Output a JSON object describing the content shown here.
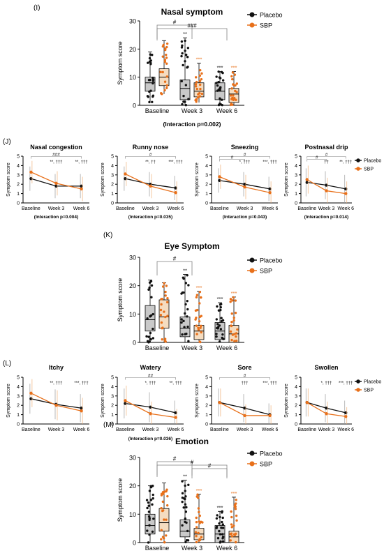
{
  "colors": {
    "placebo": "#111111",
    "sbp": "#e8701a",
    "box_placebo": "#c9c9c9",
    "box_sbp": "#f5dcc0",
    "bracket": "#7f7f7f",
    "err_sbp": "#f0b27a",
    "err_placebo": "#9a9a9a"
  },
  "panel_labels": [
    "(I)",
    "(J)",
    "(K)",
    "(L)",
    "(M)"
  ],
  "chart_data": [
    {
      "id": "I",
      "type": "box",
      "title": "Nasal symptom",
      "ylabel": "Symptom score",
      "ylim": [
        0,
        30
      ],
      "yticks": [
        0,
        10,
        20,
        30
      ],
      "categories": [
        "Baseline",
        "Week 3",
        "Week 6"
      ],
      "legend": [
        "Placebo",
        "SBP"
      ],
      "series": [
        {
          "name": "Placebo",
          "box": [
            [
              5,
              8,
              10,
              1,
              19
            ],
            [
              2,
              6,
              9,
              0,
              24
            ],
            [
              2,
              5,
              8,
              0,
              12
            ]
          ]
        },
        {
          "name": "SBP",
          "box": [
            [
              7,
              10,
              13,
              4,
              23
            ],
            [
              3,
              5,
              8,
              1,
              15
            ],
            [
              1,
              4,
              6,
              0,
              12
            ]
          ]
        }
      ],
      "stars": [
        [
          "",
          "**",
          "***"
        ],
        [
          "",
          "***",
          "***"
        ]
      ],
      "brackets": [
        "#",
        "###"
      ],
      "note": "(Interaction p=0.002)"
    },
    {
      "id": "J1",
      "type": "line",
      "title": "Nasal congestion",
      "ylabel": "Symptom score",
      "ylim": [
        0,
        5
      ],
      "yticks": [
        0,
        1,
        2,
        3,
        4,
        5
      ],
      "categories": [
        "Baseline",
        "Week 3",
        "Week 6"
      ],
      "series": [
        {
          "name": "Placebo",
          "values": [
            2.6,
            1.8,
            1.8
          ],
          "err": [
            1.3,
            1.3,
            1.3
          ]
        },
        {
          "name": "SBP",
          "values": [
            3.3,
            2.1,
            1.5
          ],
          "err": [
            1.2,
            1.3,
            1.3
          ]
        }
      ],
      "annotations": [
        "",
        "**, †††",
        "**, †††"
      ],
      "brackets": [
        "###"
      ],
      "note": "(Interaction p=0.004)"
    },
    {
      "id": "J2",
      "type": "line",
      "title": "Runny nose",
      "ylabel": "Symptom score",
      "ylim": [
        0,
        5
      ],
      "yticks": [
        0,
        1,
        2,
        3,
        4,
        5
      ],
      "categories": [
        "Baseline",
        "Week 3",
        "Week 6"
      ],
      "series": [
        {
          "name": "Placebo",
          "values": [
            2.6,
            2.0,
            1.6
          ],
          "err": [
            1.3,
            1.3,
            1.3
          ]
        },
        {
          "name": "SBP",
          "values": [
            3.1,
            1.8,
            1.1
          ],
          "err": [
            1.3,
            1.3,
            1.2
          ]
        }
      ],
      "annotations": [
        "",
        "**, ††",
        "***, †††"
      ],
      "brackets": [
        "#"
      ],
      "note": "(Interaction p=0.035)"
    },
    {
      "id": "J3",
      "type": "line",
      "title": "Sneezing",
      "ylabel": "Symptom score",
      "ylim": [
        0,
        5
      ],
      "yticks": [
        0,
        1,
        2,
        3,
        4,
        5
      ],
      "categories": [
        "Baseline",
        "Week 3",
        "Week 6"
      ],
      "series": [
        {
          "name": "Placebo",
          "values": [
            2.4,
            2.0,
            1.5
          ],
          "err": [
            1.3,
            1.3,
            1.3
          ]
        },
        {
          "name": "SBP",
          "values": [
            2.8,
            1.7,
            1.1
          ],
          "err": [
            1.3,
            1.3,
            1.2
          ]
        }
      ],
      "annotations": [
        "",
        "*, †††",
        "***, †††"
      ],
      "brackets": [
        "#",
        "#"
      ],
      "note": "(Interaction p=0.043)"
    },
    {
      "id": "J4",
      "type": "line",
      "title": "Postnasal drip",
      "ylabel": "Symptom score",
      "ylim": [
        0,
        5
      ],
      "yticks": [
        0,
        1,
        2,
        3,
        4,
        5
      ],
      "categories": [
        "Baseline",
        "Week 3",
        "Week 6"
      ],
      "legend": [
        "Placebo",
        "SBP"
      ],
      "series": [
        {
          "name": "Placebo",
          "values": [
            2.2,
            1.9,
            1.5
          ],
          "err": [
            1.5,
            1.5,
            1.5
          ]
        },
        {
          "name": "SBP",
          "values": [
            2.5,
            1.3,
            1.0
          ],
          "err": [
            1.5,
            1.4,
            1.3
          ]
        }
      ],
      "annotations": [
        "",
        "††",
        "**, †††"
      ],
      "brackets": [
        "#",
        "#"
      ],
      "note": "(Interaction p=0.014)"
    },
    {
      "id": "K",
      "type": "box",
      "title": "Eye Symptom",
      "ylabel": "Symptom score",
      "ylim": [
        0,
        30
      ],
      "yticks": [
        0,
        10,
        20,
        30
      ],
      "categories": [
        "Baseline",
        "Week 3",
        "Week 6"
      ],
      "legend": [
        "Placebo",
        "SBP"
      ],
      "series": [
        {
          "name": "Placebo",
          "box": [
            [
              4,
              8,
              13,
              0,
              22
            ],
            [
              2,
              5,
              9,
              0,
              24
            ],
            [
              1,
              4,
              7,
              0,
              14
            ]
          ]
        },
        {
          "name": "SBP",
          "box": [
            [
              5,
              9,
              15,
              0,
              21
            ],
            [
              1,
              4,
              6,
              0,
              18
            ],
            [
              0,
              3,
              6,
              0,
              16
            ]
          ]
        }
      ],
      "stars": [
        [
          "",
          "**",
          "***"
        ],
        [
          "",
          "***",
          "***"
        ]
      ],
      "brackets": [
        "#"
      ]
    },
    {
      "id": "L1",
      "type": "line",
      "title": "Itchy",
      "ylabel": "Symptom score",
      "ylim": [
        0,
        5
      ],
      "yticks": [
        0,
        1,
        2,
        3,
        4,
        5
      ],
      "categories": [
        "Baseline",
        "Week 3",
        "Week 6"
      ],
      "series": [
        {
          "name": "Placebo",
          "values": [
            2.7,
            2.1,
            1.7
          ],
          "err": [
            1.6,
            1.6,
            1.5
          ]
        },
        {
          "name": "SBP",
          "values": [
            3.3,
            2.0,
            1.4
          ],
          "err": [
            1.5,
            1.6,
            1.4
          ]
        }
      ],
      "annotations": [
        "",
        "**, †††",
        "***, †††"
      ],
      "brackets": []
    },
    {
      "id": "L2",
      "type": "line",
      "title": "Watery",
      "ylabel": "Symptom score",
      "ylim": [
        0,
        5
      ],
      "yticks": [
        0,
        1,
        2,
        3,
        4,
        5
      ],
      "categories": [
        "Baseline",
        "Week 3",
        "Week 6"
      ],
      "series": [
        {
          "name": "Placebo",
          "values": [
            2.2,
            1.8,
            1.2
          ],
          "err": [
            1.6,
            1.6,
            1.3
          ]
        },
        {
          "name": "SBP",
          "values": [
            2.5,
            1.1,
            0.7
          ],
          "err": [
            1.6,
            1.3,
            0.9
          ]
        }
      ],
      "annotations": [
        "",
        "*, †††",
        "**, †††"
      ],
      "brackets": [
        "##"
      ],
      "note": "(Interaction p=0.036)"
    },
    {
      "id": "L3",
      "type": "line",
      "title": "Sore",
      "ylabel": "Symptom score",
      "ylim": [
        0,
        5
      ],
      "yticks": [
        0,
        1,
        2,
        3,
        4,
        5
      ],
      "categories": [
        "Baseline",
        "Week 3",
        "Week 6"
      ],
      "series": [
        {
          "name": "Placebo",
          "values": [
            2.3,
            1.7,
            1.0
          ],
          "err": [
            1.5,
            1.5,
            1.2
          ]
        },
        {
          "name": "SBP",
          "values": [
            2.3,
            0.9,
            0.9
          ],
          "err": [
            1.5,
            1.2,
            1.1
          ]
        }
      ],
      "annotations": [
        "",
        "†††",
        "***, †††"
      ],
      "brackets": [
        "#"
      ]
    },
    {
      "id": "L4",
      "type": "line",
      "title": "Swollen",
      "ylabel": "Symptom score",
      "ylim": [
        0,
        5
      ],
      "yticks": [
        0,
        1,
        2,
        3,
        4,
        5
      ],
      "categories": [
        "Baseline",
        "Week 3",
        "Week 6"
      ],
      "legend": [
        "Placebo",
        "SBP"
      ],
      "series": [
        {
          "name": "Placebo",
          "values": [
            2.3,
            1.7,
            1.2
          ],
          "err": [
            1.5,
            1.5,
            1.3
          ]
        },
        {
          "name": "SBP",
          "values": [
            2.3,
            1.1,
            0.8
          ],
          "err": [
            1.5,
            1.3,
            1.0
          ]
        }
      ],
      "annotations": [
        "",
        "*, †††",
        "***, †††"
      ],
      "brackets": []
    },
    {
      "id": "M",
      "type": "box",
      "title": "Emotion",
      "ylabel": "Symptom score",
      "ylim": [
        0,
        30
      ],
      "yticks": [
        0,
        10,
        20,
        30
      ],
      "categories": [
        "Baseline",
        "Week 3",
        "Week 6"
      ],
      "legend": [
        "Placebo",
        "SBP"
      ],
      "series": [
        {
          "name": "Placebo",
          "box": [
            [
              3,
              6,
              10,
              0,
              20
            ],
            [
              2,
              4,
              8,
              0,
              22
            ],
            [
              0,
              3,
              6,
              0,
              11
            ]
          ]
        },
        {
          "name": "SBP",
          "box": [
            [
              4,
              7,
              12,
              0,
              21
            ],
            [
              1,
              3,
              5,
              0,
              17
            ],
            [
              0,
              2,
              4,
              0,
              16
            ]
          ]
        }
      ],
      "stars": [
        [
          "",
          "**",
          "***"
        ],
        [
          "",
          "***",
          "***"
        ]
      ],
      "brackets": [
        "#",
        "#",
        "#"
      ]
    }
  ]
}
